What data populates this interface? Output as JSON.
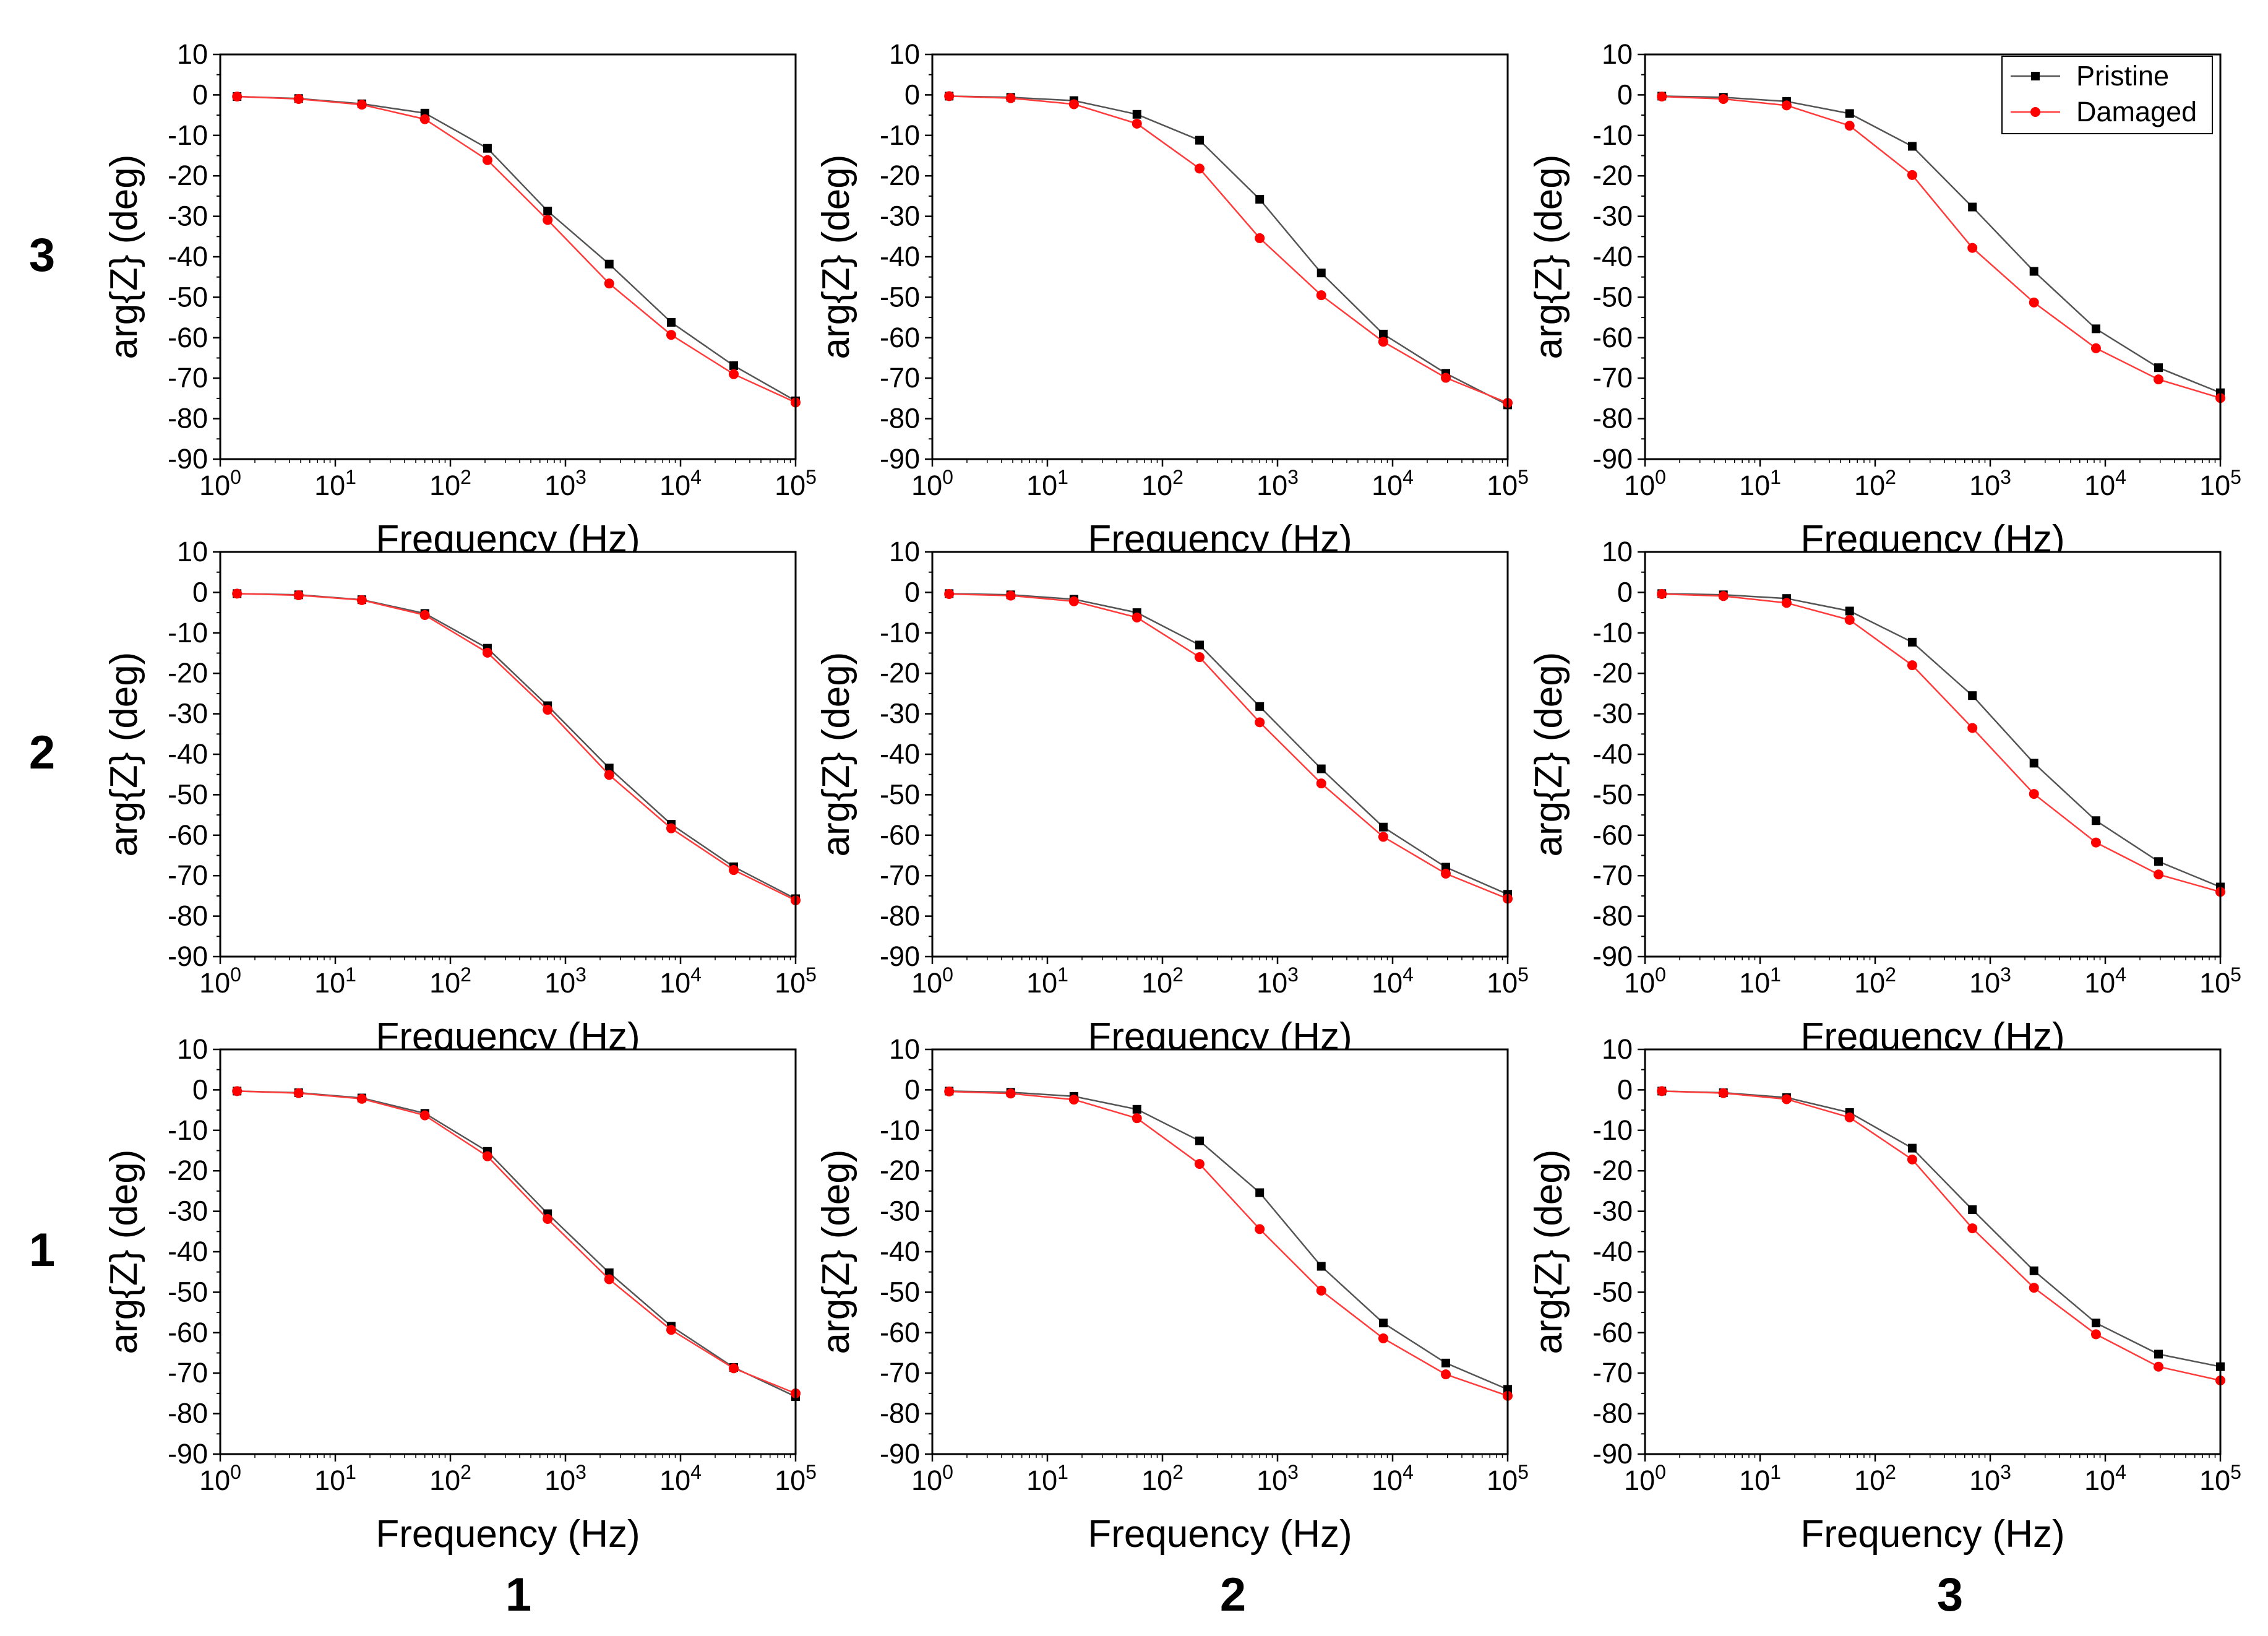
{
  "figure": {
    "row_labels": [
      "3",
      "2",
      "1"
    ],
    "column_labels": [
      "1",
      "2",
      "3"
    ]
  },
  "legend": {
    "entries": [
      {
        "name": "Pristine",
        "color": "#000000",
        "marker": "square"
      },
      {
        "name": "Damaged",
        "color": "#ff0000",
        "marker": "circle"
      }
    ],
    "placement": "top-right of top-right panel"
  },
  "colors": {
    "pristine": "#000000",
    "damaged": "#ff0000",
    "line_pristine": "#555555",
    "line_damaged": "#ff3b3b"
  },
  "chart_data": [
    {
      "type": "line",
      "row": "3",
      "column": "1",
      "xlabel": "Frequency (Hz)",
      "ylabel": "arg{Z} (deg)",
      "xscale": "log",
      "xlim": [
        1,
        100000
      ],
      "ylim": [
        -90,
        10
      ],
      "yticks": [
        10,
        0,
        -10,
        -20,
        -30,
        -40,
        -50,
        -60,
        -70,
        -80,
        -90
      ],
      "xticks": [
        "10^0",
        "10^1",
        "10^2",
        "10^3",
        "10^4",
        "10^5"
      ],
      "grid": false,
      "x": [
        1.4,
        4.8,
        17,
        60,
        210,
        700,
        2400,
        8300,
        29000,
        100000
      ],
      "series": [
        {
          "name": "Pristine",
          "values": [
            -0.4,
            -0.9,
            -2.2,
            -4.5,
            -13.2,
            -28.7,
            -41.8,
            -56.2,
            -66.9,
            -75.6
          ]
        },
        {
          "name": "Damaged",
          "values": [
            -0.4,
            -1.0,
            -2.4,
            -6.0,
            -16.1,
            -30.9,
            -46.6,
            -59.3,
            -69.0,
            -76.0
          ]
        }
      ]
    },
    {
      "type": "line",
      "row": "3",
      "column": "2",
      "xlabel": "Frequency (Hz)",
      "ylabel": "arg{Z} (deg)",
      "xscale": "log",
      "xlim": [
        1,
        100000
      ],
      "ylim": [
        -90,
        10
      ],
      "yticks": [
        10,
        0,
        -10,
        -20,
        -30,
        -40,
        -50,
        -60,
        -70,
        -80,
        -90
      ],
      "xticks": [
        "10^0",
        "10^1",
        "10^2",
        "10^3",
        "10^4",
        "10^5"
      ],
      "grid": false,
      "x": [
        1.4,
        4.8,
        17,
        60,
        210,
        700,
        2400,
        8300,
        29000,
        100000
      ],
      "series": [
        {
          "name": "Pristine",
          "values": [
            -0.3,
            -0.6,
            -1.4,
            -4.8,
            -11.2,
            -25.8,
            -44.0,
            -59.1,
            -68.8,
            -76.6
          ]
        },
        {
          "name": "Damaged",
          "values": [
            -0.3,
            -0.8,
            -2.3,
            -7.1,
            -18.2,
            -35.4,
            -49.5,
            -61.0,
            -69.9,
            -76.1
          ]
        }
      ]
    },
    {
      "type": "line",
      "row": "3",
      "column": "3",
      "xlabel": "Frequency (Hz)",
      "ylabel": "arg{Z} (deg)",
      "xscale": "log",
      "xlim": [
        1,
        100000
      ],
      "ylim": [
        -90,
        10
      ],
      "yticks": [
        10,
        0,
        -10,
        -20,
        -30,
        -40,
        -50,
        -60,
        -70,
        -80,
        -90
      ],
      "xticks": [
        "10^0",
        "10^1",
        "10^2",
        "10^3",
        "10^4",
        "10^5"
      ],
      "grid": false,
      "x": [
        1.4,
        4.8,
        17,
        60,
        210,
        700,
        2400,
        8300,
        29000,
        100000
      ],
      "series": [
        {
          "name": "Pristine",
          "values": [
            -0.3,
            -0.6,
            -1.6,
            -4.6,
            -12.7,
            -27.7,
            -43.6,
            -57.8,
            -67.4,
            -73.6
          ]
        },
        {
          "name": "Damaged",
          "values": [
            -0.4,
            -1.0,
            -2.6,
            -7.6,
            -19.8,
            -37.8,
            -51.3,
            -62.6,
            -70.3,
            -74.9
          ]
        }
      ]
    },
    {
      "type": "line",
      "row": "2",
      "column": "1",
      "xlabel": "Frequency (Hz)",
      "ylabel": "arg{Z} (deg)",
      "xscale": "log",
      "xlim": [
        1,
        100000
      ],
      "ylim": [
        -90,
        10
      ],
      "yticks": [
        10,
        0,
        -10,
        -20,
        -30,
        -40,
        -50,
        -60,
        -70,
        -80,
        -90
      ],
      "xticks": [
        "10^0",
        "10^1",
        "10^2",
        "10^3",
        "10^4",
        "10^5"
      ],
      "grid": false,
      "x": [
        1.4,
        4.8,
        17,
        60,
        210,
        700,
        2400,
        8300,
        29000,
        100000
      ],
      "series": [
        {
          "name": "Pristine",
          "values": [
            -0.3,
            -0.6,
            -1.8,
            -5.2,
            -13.8,
            -28.0,
            -43.4,
            -57.3,
            -67.8,
            -75.7
          ]
        },
        {
          "name": "Damaged",
          "values": [
            -0.3,
            -0.7,
            -1.9,
            -5.6,
            -14.9,
            -29.0,
            -45.1,
            -58.3,
            -68.6,
            -76.1
          ]
        }
      ]
    },
    {
      "type": "line",
      "row": "2",
      "column": "2",
      "xlabel": "Frequency (Hz)",
      "ylabel": "arg{Z} (deg)",
      "xscale": "log",
      "xlim": [
        1,
        100000
      ],
      "ylim": [
        -90,
        10
      ],
      "yticks": [
        10,
        0,
        -10,
        -20,
        -30,
        -40,
        -50,
        -60,
        -70,
        -80,
        -90
      ],
      "xticks": [
        "10^0",
        "10^1",
        "10^2",
        "10^3",
        "10^4",
        "10^5"
      ],
      "grid": false,
      "x": [
        1.4,
        4.8,
        17,
        60,
        210,
        700,
        2400,
        8300,
        29000,
        100000
      ],
      "series": [
        {
          "name": "Pristine",
          "values": [
            -0.3,
            -0.6,
            -1.7,
            -5.0,
            -13.0,
            -28.2,
            -43.6,
            -58.0,
            -67.9,
            -74.6
          ]
        },
        {
          "name": "Damaged",
          "values": [
            -0.4,
            -0.8,
            -2.2,
            -6.2,
            -16.0,
            -32.1,
            -47.2,
            -60.4,
            -69.5,
            -75.7
          ]
        }
      ]
    },
    {
      "type": "line",
      "row": "2",
      "column": "3",
      "xlabel": "Frequency (Hz)",
      "ylabel": "arg{Z} (deg)",
      "xscale": "log",
      "xlim": [
        1,
        100000
      ],
      "ylim": [
        -90,
        10
      ],
      "yticks": [
        10,
        0,
        -10,
        -20,
        -30,
        -40,
        -50,
        -60,
        -70,
        -80,
        -90
      ],
      "xticks": [
        "10^0",
        "10^1",
        "10^2",
        "10^3",
        "10^4",
        "10^5"
      ],
      "grid": false,
      "x": [
        1.4,
        4.8,
        17,
        60,
        210,
        700,
        2400,
        8300,
        29000,
        100000
      ],
      "series": [
        {
          "name": "Pristine",
          "values": [
            -0.3,
            -0.6,
            -1.5,
            -4.6,
            -12.3,
            -25.5,
            -42.2,
            -56.4,
            -66.5,
            -72.8
          ]
        },
        {
          "name": "Damaged",
          "values": [
            -0.4,
            -0.9,
            -2.6,
            -6.8,
            -18.0,
            -33.5,
            -49.8,
            -61.8,
            -69.7,
            -74.0
          ]
        }
      ]
    },
    {
      "type": "line",
      "row": "1",
      "column": "1",
      "xlabel": "Frequency (Hz)",
      "ylabel": "arg{Z} (deg)",
      "xscale": "log",
      "xlim": [
        1,
        100000
      ],
      "ylim": [
        -90,
        10
      ],
      "yticks": [
        10,
        0,
        -10,
        -20,
        -30,
        -40,
        -50,
        -60,
        -70,
        -80,
        -90
      ],
      "xticks": [
        "10^0",
        "10^1",
        "10^2",
        "10^3",
        "10^4",
        "10^5"
      ],
      "grid": false,
      "x": [
        1.4,
        4.8,
        17,
        60,
        210,
        700,
        2400,
        8300,
        29000,
        100000
      ],
      "series": [
        {
          "name": "Pristine",
          "values": [
            -0.3,
            -0.7,
            -2.0,
            -5.8,
            -15.2,
            -30.6,
            -45.2,
            -58.4,
            -68.6,
            -75.8
          ]
        },
        {
          "name": "Damaged",
          "values": [
            -0.3,
            -0.8,
            -2.2,
            -6.3,
            -16.4,
            -31.9,
            -46.8,
            -59.3,
            -68.8,
            -75.0
          ]
        }
      ]
    },
    {
      "type": "line",
      "row": "1",
      "column": "2",
      "xlabel": "Frequency (Hz)",
      "ylabel": "arg{Z} (deg)",
      "xscale": "log",
      "xlim": [
        1,
        100000
      ],
      "ylim": [
        -90,
        10
      ],
      "yticks": [
        10,
        0,
        -10,
        -20,
        -30,
        -40,
        -50,
        -60,
        -70,
        -80,
        -90
      ],
      "xticks": [
        "10^0",
        "10^1",
        "10^2",
        "10^3",
        "10^4",
        "10^5"
      ],
      "grid": false,
      "x": [
        1.4,
        4.8,
        17,
        60,
        210,
        700,
        2400,
        8300,
        29000,
        100000
      ],
      "series": [
        {
          "name": "Pristine",
          "values": [
            -0.3,
            -0.6,
            -1.6,
            -4.8,
            -12.6,
            -25.4,
            -43.6,
            -57.6,
            -67.5,
            -74.0
          ]
        },
        {
          "name": "Damaged",
          "values": [
            -0.4,
            -0.9,
            -2.4,
            -7.0,
            -18.3,
            -34.4,
            -49.6,
            -61.4,
            -70.3,
            -75.6
          ]
        }
      ]
    },
    {
      "type": "line",
      "row": "1",
      "column": "3",
      "xlabel": "Frequency (Hz)",
      "ylabel": "arg{Z} (deg)",
      "xscale": "log",
      "xlim": [
        1,
        100000
      ],
      "ylim": [
        -90,
        10
      ],
      "yticks": [
        10,
        0,
        -10,
        -20,
        -30,
        -40,
        -50,
        -60,
        -70,
        -80,
        -90
      ],
      "xticks": [
        "10^0",
        "10^1",
        "10^2",
        "10^3",
        "10^4",
        "10^5"
      ],
      "grid": false,
      "x": [
        1.4,
        4.8,
        17,
        60,
        210,
        700,
        2400,
        8300,
        29000,
        100000
      ],
      "series": [
        {
          "name": "Pristine",
          "values": [
            -0.3,
            -0.7,
            -1.9,
            -5.6,
            -14.4,
            -29.6,
            -44.7,
            -57.6,
            -65.3,
            -68.4
          ]
        },
        {
          "name": "Damaged",
          "values": [
            -0.3,
            -0.8,
            -2.3,
            -6.8,
            -17.2,
            -34.2,
            -48.9,
            -60.4,
            -68.4,
            -71.8
          ]
        }
      ]
    }
  ]
}
